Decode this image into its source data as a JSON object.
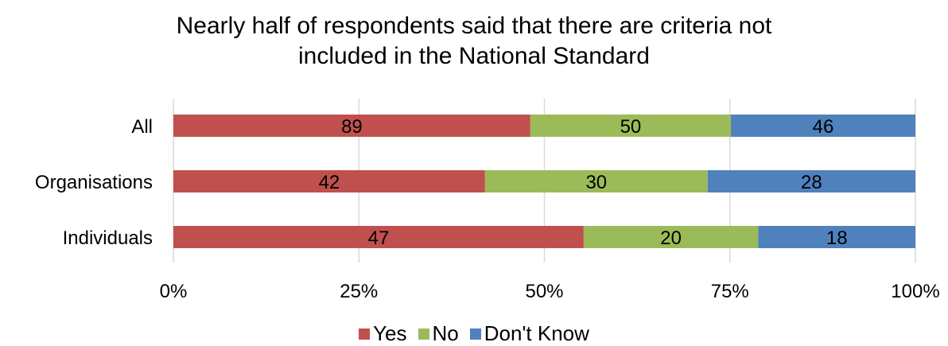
{
  "chart_data": {
    "type": "bar",
    "orientation": "horizontal",
    "stacked": "percent",
    "title_lines": [
      "Nearly half of respondents said that there are criteria not",
      "included in the National Standard"
    ],
    "categories": [
      "All",
      "Organisations",
      "Individuals"
    ],
    "series": [
      {
        "name": "Yes",
        "color": "#c0504d",
        "values": [
          89,
          42,
          47
        ]
      },
      {
        "name": "No",
        "color": "#9bbb59",
        "values": [
          50,
          30,
          20
        ]
      },
      {
        "name": "Don't Know",
        "color": "#4f81bd",
        "values": [
          46,
          28,
          18
        ]
      }
    ],
    "x_ticks": [
      "0%",
      "25%",
      "50%",
      "75%",
      "100%"
    ],
    "xlim": [
      0,
      100
    ],
    "grid": true,
    "legend_position": "bottom"
  }
}
